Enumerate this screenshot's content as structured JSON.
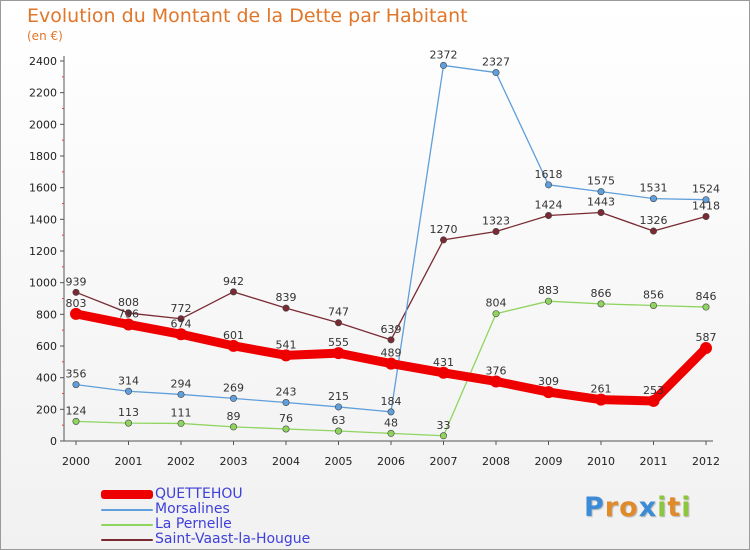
{
  "title": "Evolution du Montant de la Dette par Habitant",
  "subtitle": "(en €)",
  "logo": {
    "text": "Proxiti",
    "letters": [
      "P",
      "r",
      "o",
      "x",
      "i",
      "t",
      "i"
    ],
    "colors": [
      "#3b8bd6",
      "#e08a2a",
      "#e08a2a",
      "#3b8bd6",
      "#8cc63f",
      "#e08a2a",
      "#8cc63f"
    ]
  },
  "chart_data": {
    "type": "line",
    "x": [
      "2000",
      "2001",
      "2002",
      "2003",
      "2004",
      "2005",
      "2006",
      "2007",
      "2008",
      "2009",
      "2010",
      "2011",
      "2012"
    ],
    "ylim": [
      0,
      2400
    ],
    "yticks": [
      "0",
      "200",
      "400",
      "600",
      "800",
      "1000",
      "1200",
      "1400",
      "1600",
      "1800",
      "2000",
      "2200",
      "2400"
    ],
    "grid": false,
    "legend_position": "bottom-left",
    "series": [
      {
        "name": "QUETTEHOU",
        "color": "#ee0000",
        "values": [
          803,
          736,
          674,
          601,
          541,
          555,
          489,
          431,
          376,
          309,
          261,
          253,
          587
        ],
        "labels": [
          "803",
          "736",
          "674",
          "601",
          "541",
          "555",
          "489",
          "431",
          "376",
          "309",
          "261",
          "253",
          "587"
        ]
      },
      {
        "name": "Morsalines",
        "color": "#5f9fdb",
        "values": [
          356,
          314,
          294,
          269,
          243,
          215,
          184,
          2372,
          2327,
          1618,
          1575,
          1531,
          1524
        ],
        "labels": [
          "356",
          "314",
          "294",
          "269",
          "243",
          "215",
          "184",
          "2372",
          "2327",
          "1618",
          "1575",
          "1531",
          "1524"
        ]
      },
      {
        "name": "La Pernelle",
        "color": "#8fd45f",
        "values": [
          124,
          113,
          111,
          89,
          76,
          63,
          48,
          33,
          804,
          883,
          866,
          856,
          846
        ],
        "labels": [
          "124",
          "113",
          "111",
          "89",
          "76",
          "63",
          "48",
          "33",
          "804",
          "883",
          "866",
          "856",
          "846"
        ]
      },
      {
        "name": "Saint-Vaast-la-Hougue",
        "color": "#7a2a33",
        "values": [
          939,
          808,
          772,
          942,
          839,
          747,
          639,
          1270,
          1323,
          1424,
          1443,
          1326,
          1418
        ],
        "labels": [
          "939",
          "808",
          "772",
          "942",
          "839",
          "747",
          "639",
          "1270",
          "1323",
          "1424",
          "1443",
          "1326",
          "1418"
        ]
      }
    ]
  }
}
